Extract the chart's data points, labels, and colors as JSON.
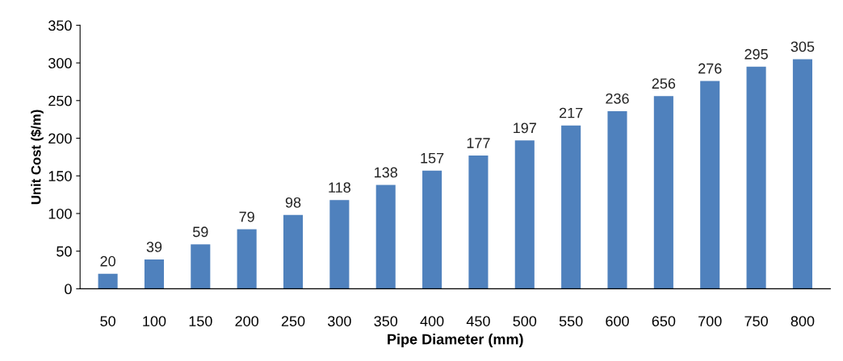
{
  "chart_data": {
    "type": "bar",
    "xlabel": "Pipe Diameter (mm)",
    "ylabel": "Unit Cost ($/m)",
    "categories": [
      "50",
      "100",
      "150",
      "200",
      "250",
      "300",
      "350",
      "400",
      "450",
      "500",
      "550",
      "600",
      "650",
      "700",
      "750",
      "800"
    ],
    "values": [
      20,
      39,
      59,
      79,
      98,
      118,
      138,
      157,
      177,
      197,
      217,
      236,
      256,
      276,
      295,
      305
    ],
    "color": "#4f81bd",
    "ylim": [
      0,
      350
    ],
    "yticks": [
      0,
      50,
      100,
      150,
      200,
      250,
      300,
      350
    ],
    "data_labels": true,
    "grid": false,
    "legend": false
  }
}
